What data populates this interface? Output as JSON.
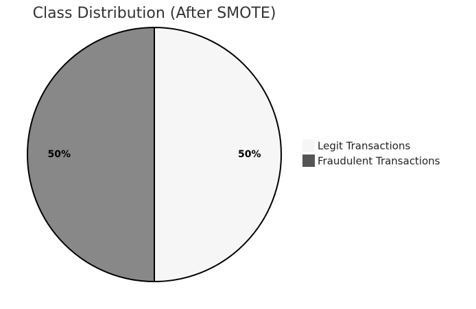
{
  "chart_data": {
    "type": "pie",
    "title": "Class Distribution (After SMOTE)",
    "slices": [
      {
        "label": "Legit Transactions",
        "value": 50,
        "display": "50%",
        "color": "#f6f6f6"
      },
      {
        "label": "Fraudulent Transactions",
        "value": 50,
        "display": "50%",
        "color": "#888888"
      }
    ],
    "legend": {
      "position": "right",
      "swatch_colors": [
        "#f6f6f6",
        "#555555"
      ]
    },
    "slice_border_color": "#000000"
  }
}
